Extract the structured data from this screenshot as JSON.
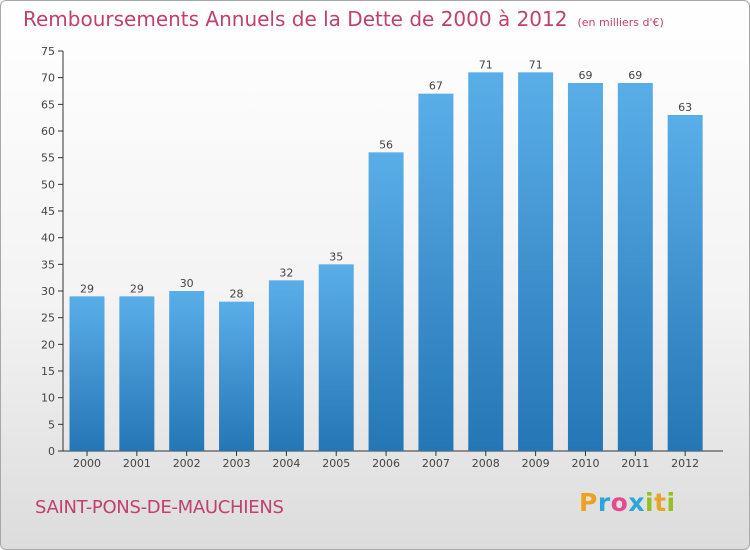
{
  "header": {
    "title": "Remboursements Annuels de la Dette de 2000 à 2012",
    "unit": "(en milliers d'€)"
  },
  "footer": {
    "commune": "SAINT-PONS-DE-MAUCHIENS",
    "brand": "Proxiti"
  },
  "colors": {
    "title": "#c0406e",
    "bar_top": "#5aaee8",
    "bar_bottom": "#2476b5",
    "axis": "#333333"
  },
  "chart_data": {
    "type": "bar",
    "title": "Remboursements Annuels de la Dette de 2000 à 2012",
    "categories": [
      "2000",
      "2001",
      "2002",
      "2003",
      "2004",
      "2005",
      "2006",
      "2007",
      "2008",
      "2009",
      "2010",
      "2011",
      "2012"
    ],
    "values": [
      29,
      29,
      30,
      28,
      32,
      35,
      56,
      67,
      71,
      71,
      69,
      69,
      63
    ],
    "ylim": [
      0,
      75
    ],
    "yticks": [
      0,
      5,
      10,
      15,
      20,
      25,
      30,
      35,
      40,
      45,
      50,
      55,
      60,
      65,
      70,
      75
    ],
    "grid": false,
    "xlabel": "",
    "ylabel": ""
  }
}
